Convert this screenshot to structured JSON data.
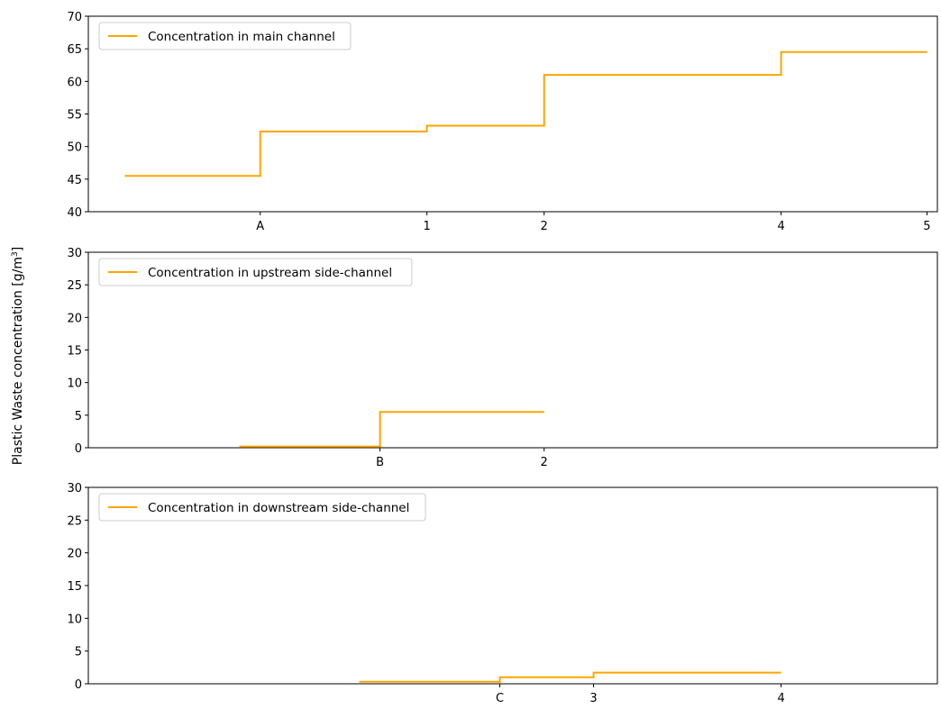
{
  "figure": {
    "ylabel": "Plastic Waste concentration [g/m",
    "ylabel_sup": "3",
    "ylabel_end": "]"
  },
  "chart_data": [
    {
      "type": "line",
      "step": "post",
      "grid": false,
      "legend_position": "upper-left",
      "xlim": [
        0.0,
        16.3
      ],
      "ylim": [
        40,
        70
      ],
      "yticks": [
        40,
        45,
        50,
        55,
        60,
        65,
        70
      ],
      "xticks": [
        {
          "value": 3.3,
          "label": "A"
        },
        {
          "value": 6.5,
          "label": "1"
        },
        {
          "value": 8.75,
          "label": "2"
        },
        {
          "value": 13.3,
          "label": "4"
        },
        {
          "value": 16.1,
          "label": "5"
        }
      ],
      "series": [
        {
          "name": "Concentration in main channel",
          "color": "#ffa500",
          "x": [
            0.7,
            3.3,
            6.5,
            8.75,
            13.3,
            16.1
          ],
          "y": [
            45.5,
            52.3,
            53.2,
            61.0,
            64.5,
            64.5
          ]
        }
      ]
    },
    {
      "type": "line",
      "step": "post",
      "grid": false,
      "legend_position": "upper-left",
      "xlim": [
        0.0,
        16.3
      ],
      "ylim": [
        0,
        30
      ],
      "yticks": [
        0,
        5,
        10,
        15,
        20,
        25,
        30
      ],
      "xticks": [
        {
          "value": 5.6,
          "label": "B"
        },
        {
          "value": 8.75,
          "label": "2"
        }
      ],
      "series": [
        {
          "name": "Concentration in upstream side-channel",
          "color": "#ffa500",
          "x": [
            2.9,
            5.6,
            8.75
          ],
          "y": [
            0.2,
            5.5,
            5.5
          ]
        }
      ]
    },
    {
      "type": "line",
      "step": "post",
      "grid": false,
      "legend_position": "upper-left",
      "xlim": [
        0.0,
        16.3
      ],
      "ylim": [
        0,
        30
      ],
      "yticks": [
        0,
        5,
        10,
        15,
        20,
        25,
        30
      ],
      "xticks": [
        {
          "value": 7.9,
          "label": "C"
        },
        {
          "value": 9.7,
          "label": "3"
        },
        {
          "value": 13.3,
          "label": "4"
        }
      ],
      "series": [
        {
          "name": "Concentration in downstream side-channel",
          "color": "#ffa500",
          "x": [
            5.2,
            7.9,
            9.7,
            13.3
          ],
          "y": [
            0.3,
            1.0,
            1.7,
            1.7
          ]
        }
      ]
    }
  ]
}
